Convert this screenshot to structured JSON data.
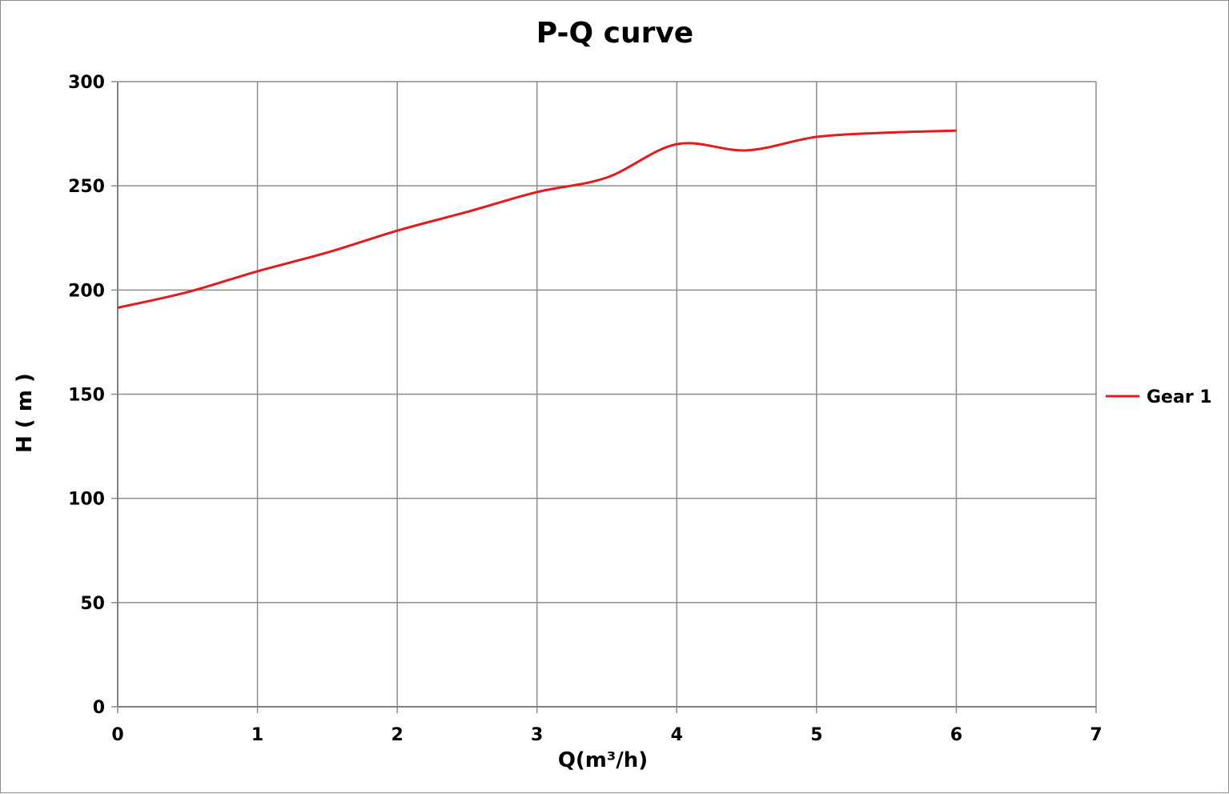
{
  "chart_data": {
    "type": "line",
    "title": "P-Q  curve",
    "xlabel": "Q(m³/h)",
    "ylabel": "H ( m )",
    "xlim": [
      0,
      7
    ],
    "ylim": [
      0,
      300
    ],
    "x_ticks": [
      "0",
      "1",
      "2",
      "3",
      "4",
      "5",
      "6",
      "7"
    ],
    "y_ticks": [
      "0",
      "50",
      "100",
      "150",
      "200",
      "250",
      "300"
    ],
    "grid": true,
    "legend_position": "right",
    "series": [
      {
        "name": "Gear 1",
        "color": "#e41a1c",
        "x": [
          0,
          0.5,
          1,
          1.5,
          2,
          2.5,
          3,
          3.5,
          4,
          4.5,
          5,
          5.5,
          6
        ],
        "y": [
          191.5,
          199,
          209,
          218,
          228.5,
          237.5,
          247,
          254,
          270,
          267,
          273.5,
          275.5,
          276.5
        ]
      }
    ]
  }
}
